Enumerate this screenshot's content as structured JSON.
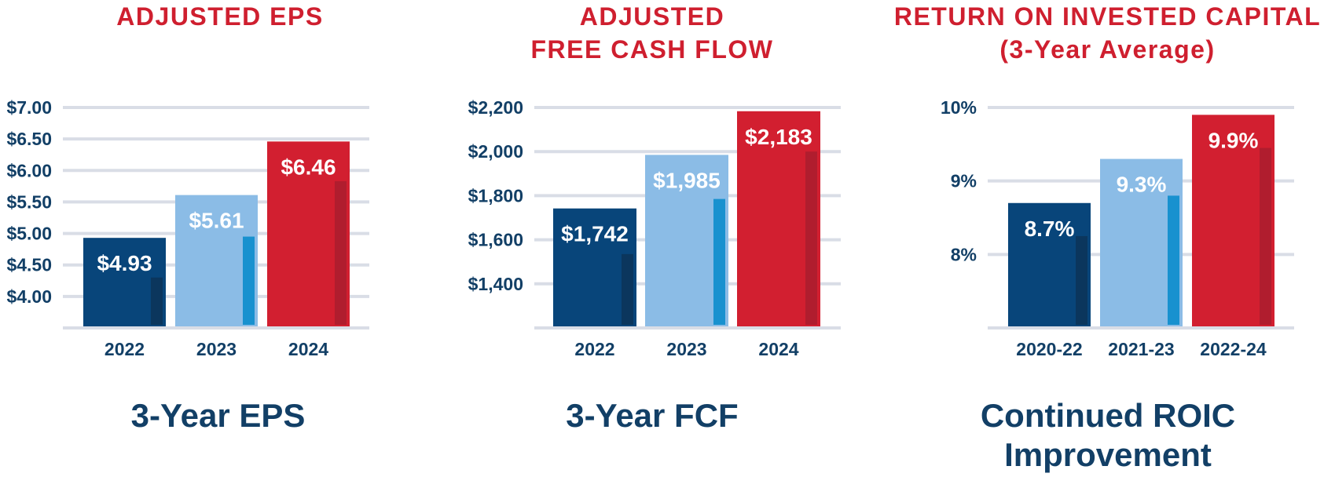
{
  "chart_data": [
    {
      "type": "bar",
      "title": "ADJUSTED EPS",
      "caption": "3-Year EPS",
      "categories": [
        "2022",
        "2023",
        "2024"
      ],
      "values": [
        4.93,
        5.61,
        6.46
      ],
      "data_labels": [
        "$4.93",
        "$5.61",
        "$6.46"
      ],
      "ylim": [
        3.5,
        7.0
      ],
      "yticks": [
        4.0,
        4.5,
        5.0,
        5.5,
        6.0,
        6.5,
        7.0
      ],
      "ytick_labels": [
        "$4.00",
        "$4.50",
        "$5.00",
        "$5.50",
        "$6.00",
        "$6.50",
        "$7.00"
      ],
      "grid": true,
      "colors": [
        "#08457a",
        "#8bbce6",
        "#d21f30"
      ],
      "accent_colors": [
        "#0b365d",
        "#1891cf",
        "#b01d2e"
      ],
      "accent_values": [
        4.3,
        4.95,
        5.83
      ]
    },
    {
      "type": "bar",
      "title": "ADJUSTED\nFREE CASH FLOW",
      "caption": "3-Year FCF",
      "categories": [
        "2022",
        "2023",
        "2024"
      ],
      "values": [
        1742,
        1985,
        2183
      ],
      "data_labels": [
        "$1,742",
        "$1,985",
        "$2,183"
      ],
      "ylim": [
        1200,
        2200
      ],
      "yticks": [
        1400,
        1600,
        1800,
        2000,
        2200
      ],
      "ytick_labels": [
        "$1,400",
        "$1,600",
        "$1,800",
        "$2,000",
        "$2,200"
      ],
      "grid": true,
      "colors": [
        "#08457a",
        "#8bbce6",
        "#d21f30"
      ],
      "accent_colors": [
        "#0b365d",
        "#1891cf",
        "#b01d2e"
      ],
      "accent_values": [
        1535,
        1785,
        2000
      ]
    },
    {
      "type": "bar",
      "title": "RETURN ON INVESTED CAPITAL\n(3-Year Average)",
      "caption": "Continued ROIC\nImprovement",
      "categories": [
        "2020-22",
        "2021-23",
        "2022-24"
      ],
      "values": [
        8.7,
        9.3,
        9.9
      ],
      "data_labels": [
        "8.7%",
        "9.3%",
        "9.9%"
      ],
      "ylim": [
        7,
        10
      ],
      "yticks": [
        8,
        9,
        10
      ],
      "ytick_labels": [
        "8%",
        "9%",
        "10%"
      ],
      "grid": true,
      "colors": [
        "#08457a",
        "#8bbce6",
        "#d21f30"
      ],
      "accent_colors": [
        "#0b365d",
        "#1891cf",
        "#b01d2e"
      ],
      "accent_values": [
        8.25,
        8.8,
        9.45
      ]
    }
  ]
}
